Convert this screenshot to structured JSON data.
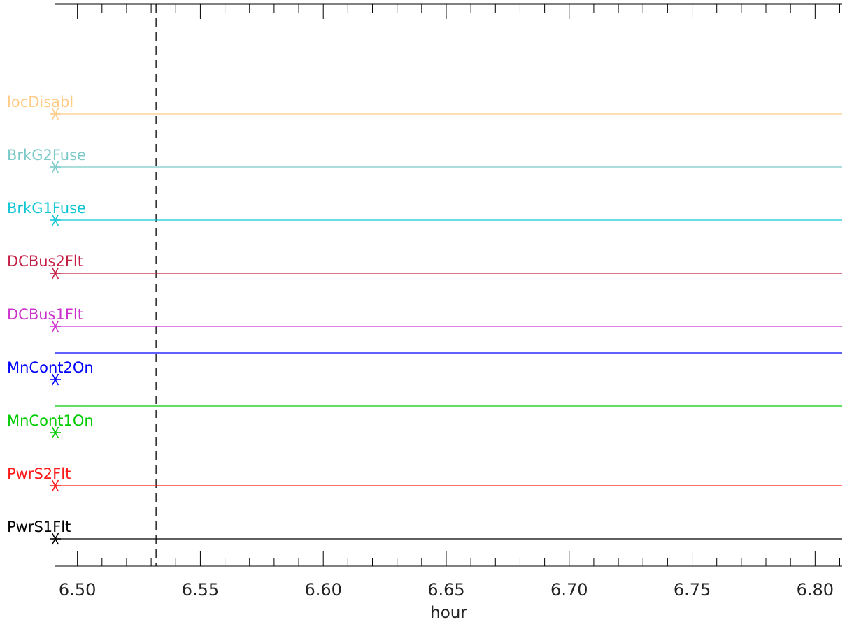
{
  "chart_data": {
    "type": "line",
    "xlabel": "hour",
    "x_range": [
      6.491,
      6.811
    ],
    "x_ticks": [
      {
        "value": 6.5,
        "label": "6.50"
      },
      {
        "value": 6.55,
        "label": "6.55"
      },
      {
        "value": 6.6,
        "label": "6.60"
      },
      {
        "value": 6.65,
        "label": "6.65"
      },
      {
        "value": 6.7,
        "label": "6.70"
      },
      {
        "value": 6.75,
        "label": "6.75"
      },
      {
        "value": 6.8,
        "label": "6.80"
      }
    ],
    "x_minor_step": 0.01,
    "vertical_marker": {
      "x": 6.532,
      "style": "dashed",
      "color": "#000000"
    },
    "series": [
      {
        "name": "PwrS1Flt",
        "color": "#000000",
        "level": 0,
        "marker_x": 6.491
      },
      {
        "name": "PwrS2Flt",
        "color": "#ff1a1a",
        "level": 0,
        "marker_x": 6.491
      },
      {
        "name": "MnCont1On",
        "color": "#00cc00",
        "level": 1,
        "marker_x": 6.491
      },
      {
        "name": "MnCont2On",
        "color": "#0000ff",
        "level": 1,
        "marker_x": 6.491
      },
      {
        "name": "DCBus1Flt",
        "color": "#cc33cc",
        "level": 0,
        "marker_x": 6.491
      },
      {
        "name": "DCBus2Flt",
        "color": "#c41f45",
        "level": 0,
        "marker_x": 6.491
      },
      {
        "name": "BrkG1Fuse",
        "color": "#11c6d4",
        "level": 0,
        "marker_x": 6.491
      },
      {
        "name": "BrkG2Fuse",
        "color": "#7cc9c9",
        "level": 0,
        "marker_x": 6.491
      },
      {
        "name": "locDisabl",
        "color": "#ffcc88",
        "level": 0,
        "marker_x": 6.491
      }
    ]
  }
}
